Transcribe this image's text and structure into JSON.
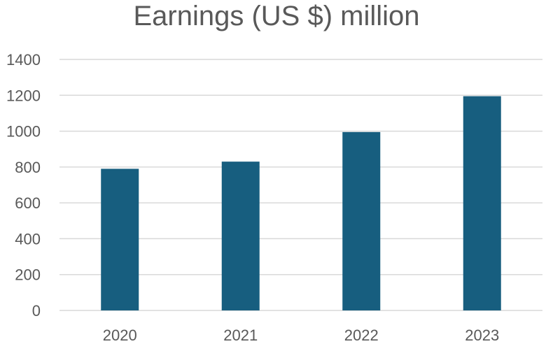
{
  "chart_data": {
    "type": "bar",
    "title": "Earnings (US $) million",
    "categories": [
      "2020",
      "2021",
      "2022",
      "2023"
    ],
    "values": [
      790,
      830,
      995,
      1195
    ],
    "ylim": [
      0,
      1400
    ],
    "yticks": [
      0,
      200,
      400,
      600,
      800,
      1000,
      1200,
      1400
    ],
    "grid": true,
    "legend": "none",
    "bar_color": "#175e7f"
  }
}
